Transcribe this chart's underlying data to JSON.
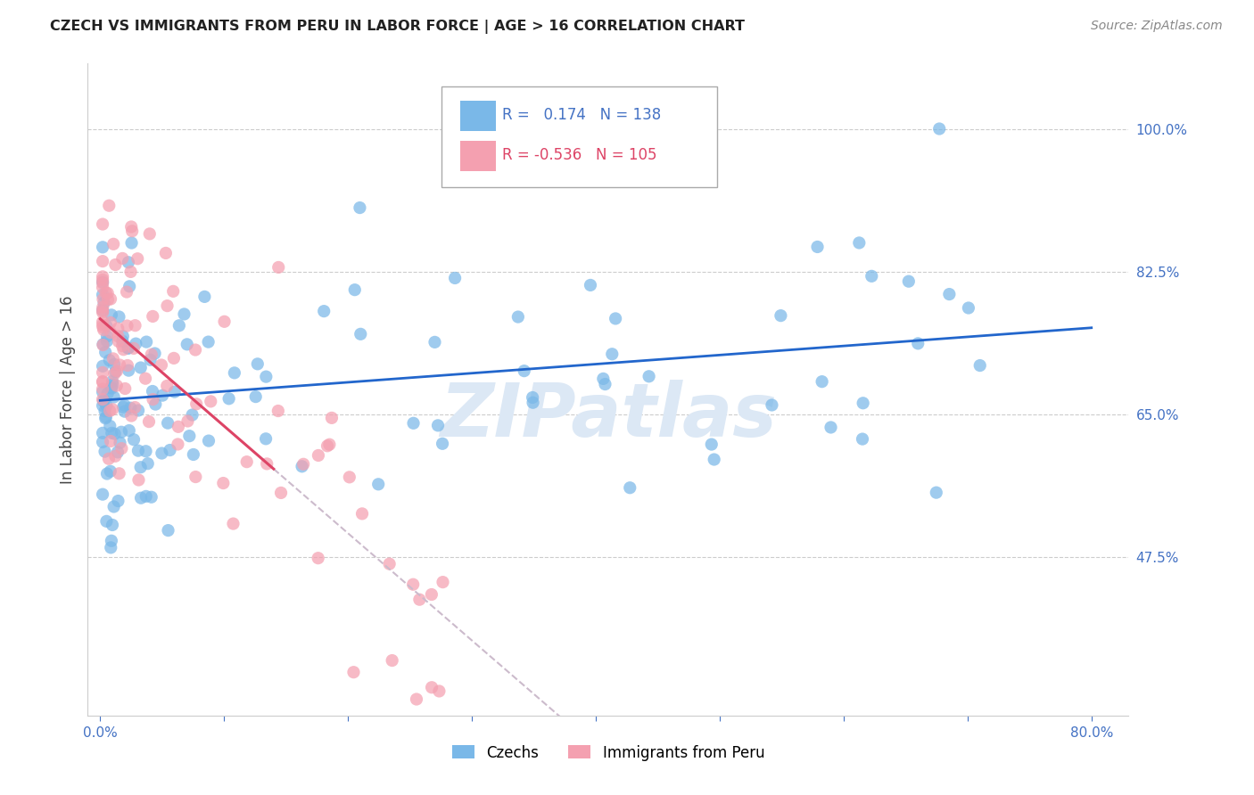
{
  "title": "CZECH VS IMMIGRANTS FROM PERU IN LABOR FORCE | AGE > 16 CORRELATION CHART",
  "source": "Source: ZipAtlas.com",
  "ylabel": "In Labor Force | Age > 16",
  "xlim": [
    -1,
    83
  ],
  "ylim": [
    28,
    108
  ],
  "y_ticks_right": [
    47.5,
    65.0,
    82.5,
    100.0
  ],
  "y_tick_labels_right": [
    "47.5%",
    "65.0%",
    "82.5%",
    "100.0%"
  ],
  "legend_R_czech": "0.174",
  "legend_N_czech": "138",
  "legend_R_peru": "-0.536",
  "legend_N_peru": "105",
  "blue_color": "#7ab8e8",
  "pink_color": "#f4a0b0",
  "trend_blue": "#2266cc",
  "trend_pink": "#dd4466",
  "trend_pink_dash": "#ccbbcc",
  "background": "#ffffff",
  "grid_color": "#cccccc",
  "watermark": "ZIPatlas",
  "watermark_color": "#dce8f5",
  "axis_color": "#4472c4",
  "title_color": "#222222",
  "n_czech": 138,
  "n_peru": 105
}
